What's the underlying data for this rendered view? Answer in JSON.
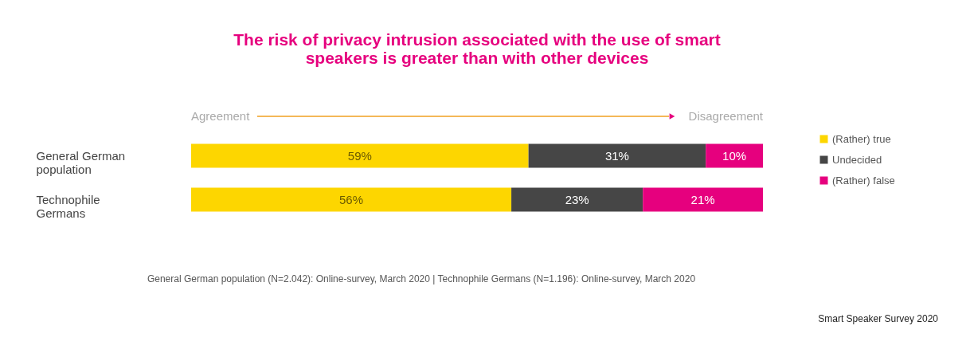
{
  "chart_data": {
    "type": "bar",
    "orientation": "horizontal",
    "stacked": true,
    "title": "The risk of privacy intrusion associated with the use of smart speakers is greater than with other devices",
    "categories": [
      "General German population",
      "Technophile Germans"
    ],
    "series": [
      {
        "name": "(Rather) true",
        "color": "#fdd600",
        "values": [
          59,
          56
        ],
        "value_labels": [
          "59%",
          "56%"
        ]
      },
      {
        "name": "Undecided",
        "color": "#464646",
        "values": [
          31,
          23
        ],
        "value_labels": [
          "31%",
          "23%"
        ]
      },
      {
        "name": "(Rather) false",
        "color": "#e6007e",
        "values": [
          10,
          21
        ],
        "value_labels": [
          "10%",
          "21%"
        ]
      }
    ],
    "legend": "right",
    "annotations": [
      "Agreement",
      "Disagreement",
      "General German population (N=2.042): Online-survey, March 2020  |  Technophile Germans (N=1.196): Online-survey, March 2020",
      "Smart Speaker Survey 2020"
    ]
  }
}
